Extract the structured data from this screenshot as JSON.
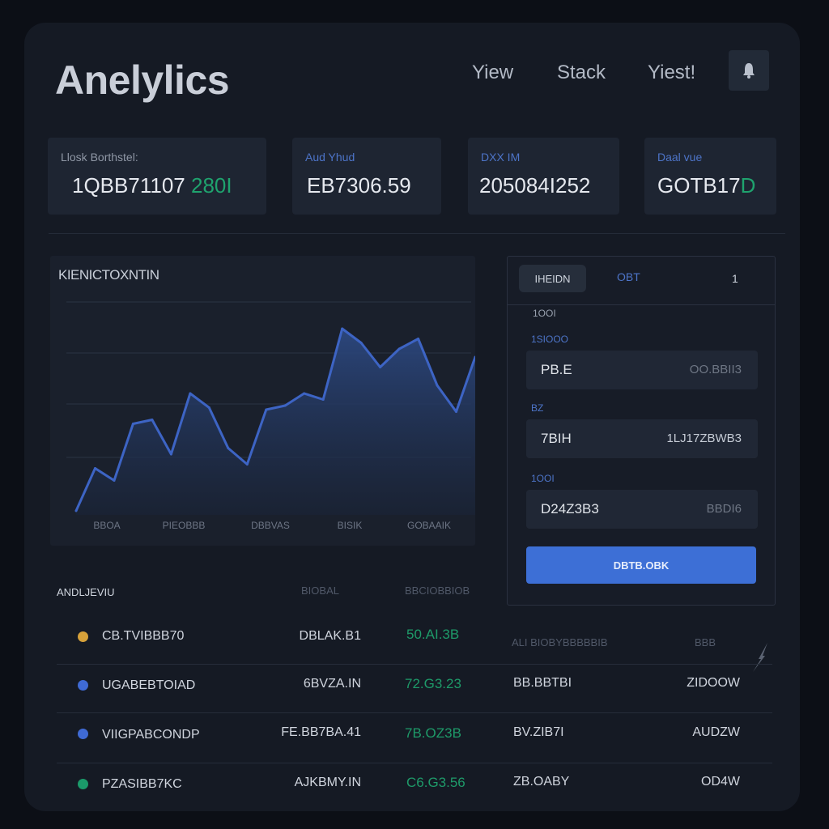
{
  "app": {
    "title": "Anelylics"
  },
  "nav": {
    "items": [
      "Yiew",
      "Stack",
      "Yiest!"
    ]
  },
  "stats": [
    {
      "label": "Llosk Borthstel:",
      "value": "1QBB71107",
      "change": "280I"
    },
    {
      "label": "Aud Yhud",
      "value": "EB7306.59",
      "change": ""
    },
    {
      "label": "DXX IM",
      "value": "205084I252",
      "change": ""
    },
    {
      "label": "Daal vue",
      "value": "GOTB17",
      "change": "D"
    }
  ],
  "chart": {
    "title": "KIENICTOXNTIN",
    "x_tick_labels": [
      "BBOA",
      "PIEOBBB",
      "DBBVAS",
      "BISIK",
      "GOBAAIK"
    ]
  },
  "chart_data": {
    "type": "area",
    "title": "KIENICTOXNTIN",
    "x": [
      0,
      1,
      2,
      3,
      4,
      5,
      6,
      7,
      8,
      9,
      10,
      11,
      12,
      13,
      14,
      15,
      16,
      17,
      18,
      19,
      20,
      21
    ],
    "values": [
      2,
      23,
      17,
      45,
      47,
      30,
      60,
      53,
      33,
      25,
      52,
      54,
      60,
      57,
      92,
      85,
      73,
      82,
      87,
      64,
      51,
      78
    ],
    "xlabel": "",
    "ylabel": "",
    "ylim": [
      0,
      100
    ],
    "grid": true,
    "color": "#3d64c4"
  },
  "side_panel": {
    "tabs": [
      "IHEIDN",
      "OBT"
    ],
    "menu": "1",
    "caption": "1OOI",
    "fields": [
      {
        "label": "1SIOOO",
        "value": "PB.E",
        "right": "OO.BBII3"
      },
      {
        "label": "BZ",
        "value": "7BIH",
        "right": "1LJ17ZBWB3"
      },
      {
        "label": "1OOI",
        "value": "D24Z3B3",
        "right": "BBDI6"
      }
    ],
    "button": "DBTB.OBK"
  },
  "table": {
    "title": "ANDLJEVIU",
    "headers": [
      "BIOBAL",
      "BBCIOBBIOB",
      "ALI BIOBYBBBBBIB",
      "BBB"
    ],
    "rows": [
      {
        "color": "#d6a13a",
        "name": "CB.TVIBBB70",
        "col2": "DBLAK.B1",
        "col3": "50.AI.3B",
        "col4": "",
        "col5": ""
      },
      {
        "color": "#3f6ad4",
        "name": "UGABEBTOIAD",
        "col2": "6BVZA.IN",
        "col3": "72.G3.23",
        "col4": "BB.BBTBI",
        "col5": "ZIDOOW"
      },
      {
        "color": "#3f6ad4",
        "name": "VIIGPABCONDP",
        "col2": "FE.BB7BA.41",
        "col3": "7B.OZ3B",
        "col4": "BV.ZIB7I",
        "col5": "AUDZW"
      },
      {
        "color": "#1b9a6a",
        "name": "PZASIBB7KC",
        "col2": "AJKBMY.IN",
        "col3": "C6.G3.56",
        "col4": "ZB.OABY",
        "col5": "OD4W"
      }
    ]
  }
}
